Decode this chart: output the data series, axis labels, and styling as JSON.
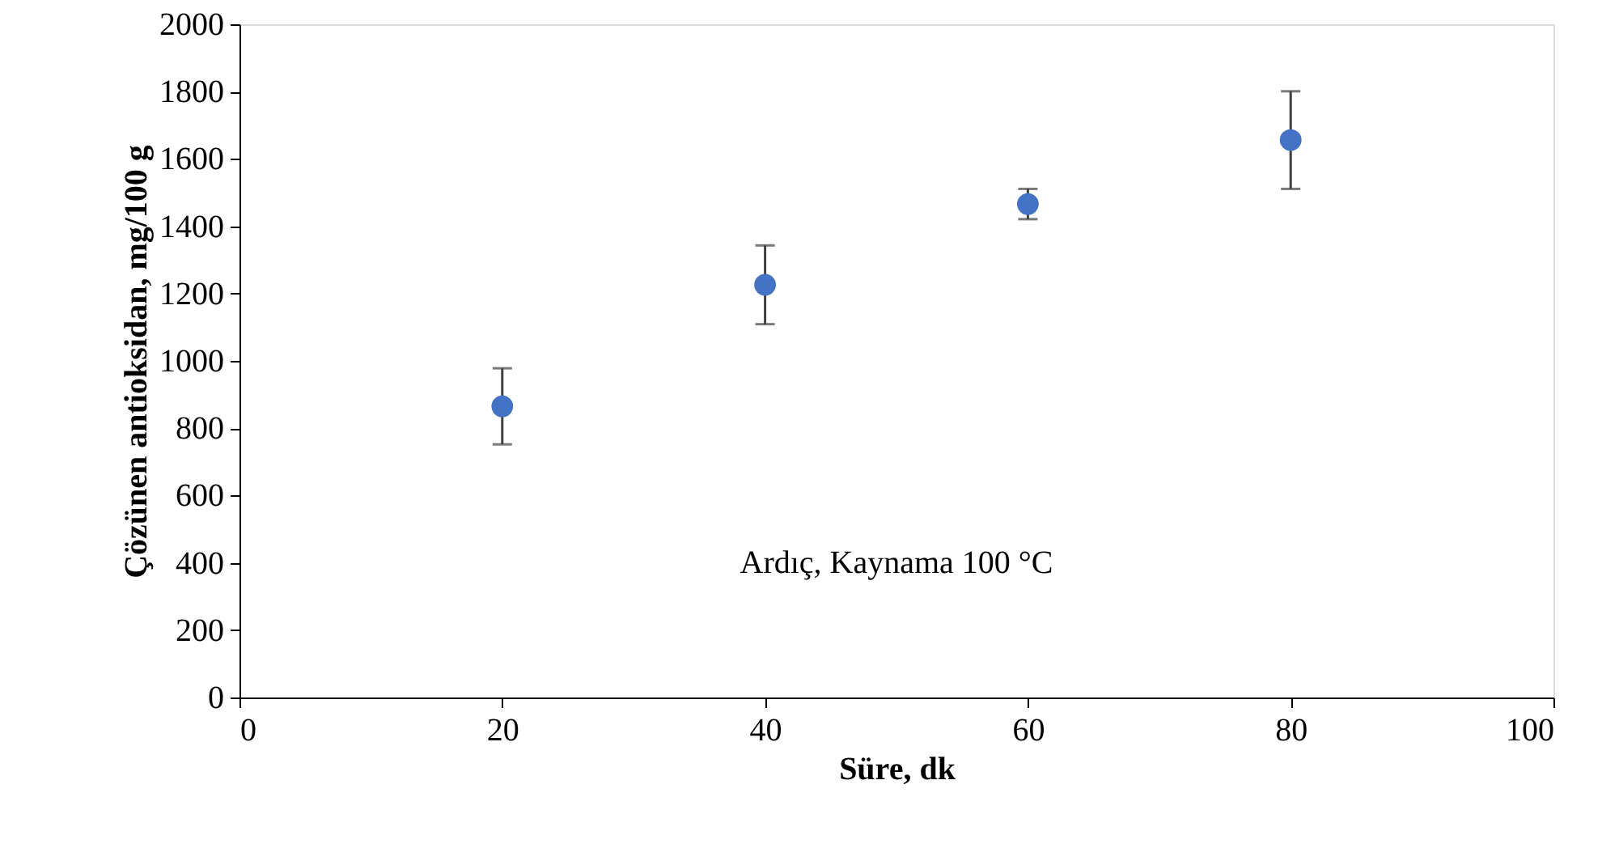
{
  "chart_data": {
    "type": "scatter",
    "xlabel": "Süre, dk",
    "ylabel": "Çözünen antioksidan, mg/100 g",
    "x": [
      20,
      40,
      60,
      80
    ],
    "series": [
      {
        "color": "#4472c4",
        "values": [
          865,
          1226,
          1466,
          1656
        ],
        "errors": [
          113,
          117,
          45,
          145
        ]
      }
    ],
    "xlim": [
      0,
      100
    ],
    "xticks": [
      0,
      20,
      40,
      60,
      80,
      100
    ],
    "ylim": [
      0,
      2000
    ],
    "yticks": [
      0,
      200,
      400,
      600,
      800,
      1000,
      1200,
      1400,
      1600,
      1800,
      2000
    ],
    "annotations": [
      "Ardıç, Kaynama 100 °C"
    ],
    "grid": false,
    "marker": "circle"
  }
}
